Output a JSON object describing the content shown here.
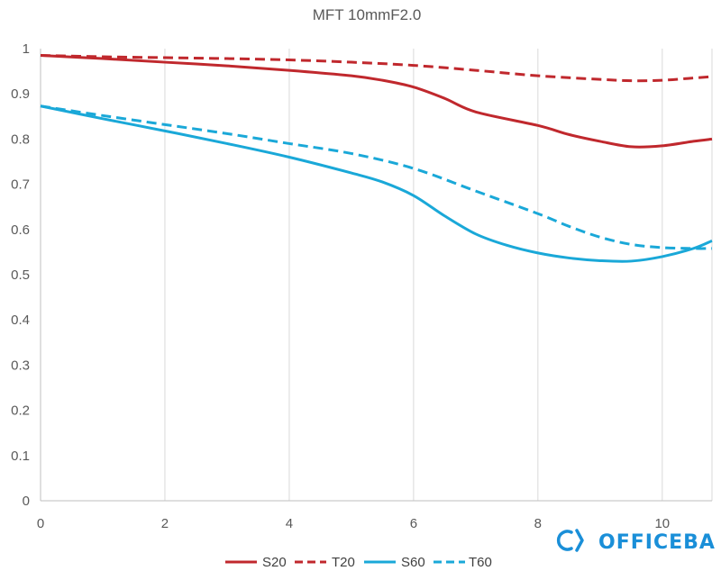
{
  "chart_data": {
    "type": "line",
    "title": "MFT  10mmF2.0",
    "xlabel": "",
    "ylabel": "",
    "xlim": [
      0,
      10.8
    ],
    "ylim": [
      0,
      1
    ],
    "x_ticks": [
      0,
      2,
      4,
      6,
      8,
      10
    ],
    "y_ticks": [
      0,
      0.1,
      0.2,
      0.3,
      0.4,
      0.5,
      0.6,
      0.7,
      0.8,
      0.9,
      1
    ],
    "grid": "vertical",
    "legend_position": "bottom",
    "series": [
      {
        "name": "S20",
        "color": "#c0282d",
        "dash": "solid",
        "points": [
          [
            0,
            0.985
          ],
          [
            1,
            0.978
          ],
          [
            2,
            0.97
          ],
          [
            3,
            0.962
          ],
          [
            4,
            0.952
          ],
          [
            5,
            0.94
          ],
          [
            5.5,
            0.93
          ],
          [
            6,
            0.915
          ],
          [
            6.5,
            0.89
          ],
          [
            7,
            0.86
          ],
          [
            8,
            0.83
          ],
          [
            8.5,
            0.81
          ],
          [
            9,
            0.795
          ],
          [
            9.5,
            0.783
          ],
          [
            10,
            0.785
          ],
          [
            10.5,
            0.795
          ],
          [
            10.8,
            0.8
          ]
        ]
      },
      {
        "name": "T20",
        "color": "#c0282d",
        "dash": "dashed",
        "points": [
          [
            0,
            0.985
          ],
          [
            1,
            0.982
          ],
          [
            2,
            0.98
          ],
          [
            3,
            0.978
          ],
          [
            4,
            0.975
          ],
          [
            5,
            0.97
          ],
          [
            6,
            0.963
          ],
          [
            7,
            0.952
          ],
          [
            8,
            0.94
          ],
          [
            9,
            0.932
          ],
          [
            9.5,
            0.929
          ],
          [
            10,
            0.93
          ],
          [
            10.5,
            0.935
          ],
          [
            10.8,
            0.938
          ]
        ]
      },
      {
        "name": "S60",
        "color": "#1aa8d8",
        "dash": "solid",
        "points": [
          [
            0,
            0.873
          ],
          [
            1,
            0.845
          ],
          [
            2,
            0.818
          ],
          [
            3,
            0.79
          ],
          [
            4,
            0.76
          ],
          [
            5,
            0.725
          ],
          [
            5.5,
            0.705
          ],
          [
            6,
            0.675
          ],
          [
            6.5,
            0.63
          ],
          [
            7,
            0.59
          ],
          [
            7.5,
            0.565
          ],
          [
            8,
            0.548
          ],
          [
            8.5,
            0.537
          ],
          [
            9,
            0.531
          ],
          [
            9.5,
            0.53
          ],
          [
            10,
            0.54
          ],
          [
            10.5,
            0.558
          ],
          [
            10.8,
            0.575
          ]
        ]
      },
      {
        "name": "T60",
        "color": "#1aa8d8",
        "dash": "dashed",
        "points": [
          [
            0,
            0.873
          ],
          [
            1,
            0.852
          ],
          [
            2,
            0.832
          ],
          [
            3,
            0.812
          ],
          [
            4,
            0.79
          ],
          [
            5,
            0.768
          ],
          [
            6,
            0.735
          ],
          [
            7,
            0.685
          ],
          [
            8,
            0.635
          ],
          [
            8.5,
            0.607
          ],
          [
            9,
            0.583
          ],
          [
            9.5,
            0.567
          ],
          [
            10,
            0.56
          ],
          [
            10.5,
            0.558
          ],
          [
            10.8,
            0.558
          ]
        ]
      }
    ]
  },
  "watermark": {
    "text": "OFFICEBA",
    "color": "#1a8fd8"
  }
}
